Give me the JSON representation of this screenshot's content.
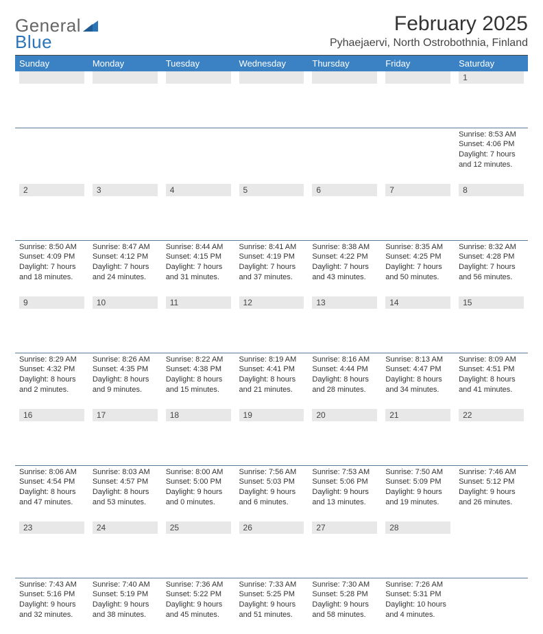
{
  "brand": {
    "line1": "General",
    "line2": "Blue"
  },
  "title": "February 2025",
  "location": "Pyhaejaervi, North Ostrobothnia, Finland",
  "colors": {
    "header_bg": "#3b82c4",
    "header_fg": "#ffffff",
    "daynum_bg": "#e8e8e8",
    "rule": "#5a7a9a",
    "brand_blue": "#2a74b8"
  },
  "weekdays": [
    "Sunday",
    "Monday",
    "Tuesday",
    "Wednesday",
    "Thursday",
    "Friday",
    "Saturday"
  ],
  "weeks": [
    [
      null,
      null,
      null,
      null,
      null,
      null,
      {
        "n": "1",
        "sr": "8:53 AM",
        "ss": "4:06 PM",
        "dl": "7 hours and 12 minutes."
      }
    ],
    [
      {
        "n": "2",
        "sr": "8:50 AM",
        "ss": "4:09 PM",
        "dl": "7 hours and 18 minutes."
      },
      {
        "n": "3",
        "sr": "8:47 AM",
        "ss": "4:12 PM",
        "dl": "7 hours and 24 minutes."
      },
      {
        "n": "4",
        "sr": "8:44 AM",
        "ss": "4:15 PM",
        "dl": "7 hours and 31 minutes."
      },
      {
        "n": "5",
        "sr": "8:41 AM",
        "ss": "4:19 PM",
        "dl": "7 hours and 37 minutes."
      },
      {
        "n": "6",
        "sr": "8:38 AM",
        "ss": "4:22 PM",
        "dl": "7 hours and 43 minutes."
      },
      {
        "n": "7",
        "sr": "8:35 AM",
        "ss": "4:25 PM",
        "dl": "7 hours and 50 minutes."
      },
      {
        "n": "8",
        "sr": "8:32 AM",
        "ss": "4:28 PM",
        "dl": "7 hours and 56 minutes."
      }
    ],
    [
      {
        "n": "9",
        "sr": "8:29 AM",
        "ss": "4:32 PM",
        "dl": "8 hours and 2 minutes."
      },
      {
        "n": "10",
        "sr": "8:26 AM",
        "ss": "4:35 PM",
        "dl": "8 hours and 9 minutes."
      },
      {
        "n": "11",
        "sr": "8:22 AM",
        "ss": "4:38 PM",
        "dl": "8 hours and 15 minutes."
      },
      {
        "n": "12",
        "sr": "8:19 AM",
        "ss": "4:41 PM",
        "dl": "8 hours and 21 minutes."
      },
      {
        "n": "13",
        "sr": "8:16 AM",
        "ss": "4:44 PM",
        "dl": "8 hours and 28 minutes."
      },
      {
        "n": "14",
        "sr": "8:13 AM",
        "ss": "4:47 PM",
        "dl": "8 hours and 34 minutes."
      },
      {
        "n": "15",
        "sr": "8:09 AM",
        "ss": "4:51 PM",
        "dl": "8 hours and 41 minutes."
      }
    ],
    [
      {
        "n": "16",
        "sr": "8:06 AM",
        "ss": "4:54 PM",
        "dl": "8 hours and 47 minutes."
      },
      {
        "n": "17",
        "sr": "8:03 AM",
        "ss": "4:57 PM",
        "dl": "8 hours and 53 minutes."
      },
      {
        "n": "18",
        "sr": "8:00 AM",
        "ss": "5:00 PM",
        "dl": "9 hours and 0 minutes."
      },
      {
        "n": "19",
        "sr": "7:56 AM",
        "ss": "5:03 PM",
        "dl": "9 hours and 6 minutes."
      },
      {
        "n": "20",
        "sr": "7:53 AM",
        "ss": "5:06 PM",
        "dl": "9 hours and 13 minutes."
      },
      {
        "n": "21",
        "sr": "7:50 AM",
        "ss": "5:09 PM",
        "dl": "9 hours and 19 minutes."
      },
      {
        "n": "22",
        "sr": "7:46 AM",
        "ss": "5:12 PM",
        "dl": "9 hours and 26 minutes."
      }
    ],
    [
      {
        "n": "23",
        "sr": "7:43 AM",
        "ss": "5:16 PM",
        "dl": "9 hours and 32 minutes."
      },
      {
        "n": "24",
        "sr": "7:40 AM",
        "ss": "5:19 PM",
        "dl": "9 hours and 38 minutes."
      },
      {
        "n": "25",
        "sr": "7:36 AM",
        "ss": "5:22 PM",
        "dl": "9 hours and 45 minutes."
      },
      {
        "n": "26",
        "sr": "7:33 AM",
        "ss": "5:25 PM",
        "dl": "9 hours and 51 minutes."
      },
      {
        "n": "27",
        "sr": "7:30 AM",
        "ss": "5:28 PM",
        "dl": "9 hours and 58 minutes."
      },
      {
        "n": "28",
        "sr": "7:26 AM",
        "ss": "5:31 PM",
        "dl": "10 hours and 4 minutes."
      },
      null
    ]
  ],
  "labels": {
    "sunrise": "Sunrise: ",
    "sunset": "Sunset: ",
    "daylight": "Daylight: "
  }
}
